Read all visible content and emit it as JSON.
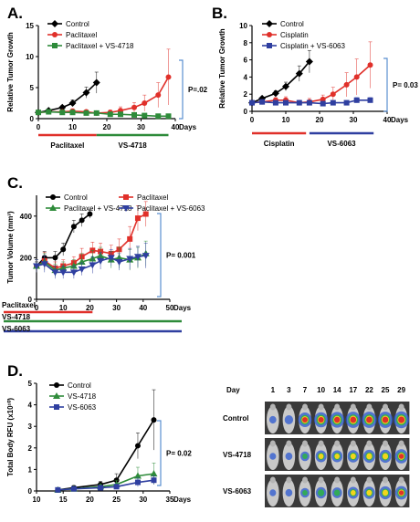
{
  "panels": {
    "A": {
      "label": "A."
    },
    "B": {
      "label": "B."
    },
    "C": {
      "label": "C."
    },
    "D": {
      "label": "D."
    }
  },
  "chart_data": [
    {
      "id": "A",
      "type": "line",
      "ylabel": "Relative Tumor Growth",
      "xlabel": "Days",
      "xlim": [
        0,
        40
      ],
      "ylim": [
        0,
        15
      ],
      "xticks": [
        0,
        10,
        20,
        30,
        40
      ],
      "yticks": [
        0,
        5,
        10,
        15
      ],
      "series": [
        {
          "name": "Control",
          "color": "#000000",
          "marker": "diamond",
          "x": [
            0,
            3,
            7,
            10,
            14,
            17
          ],
          "y": [
            1,
            1.3,
            1.8,
            2.5,
            4.2,
            5.8
          ],
          "err": [
            0,
            0.2,
            0.3,
            0.5,
            0.9,
            1.7
          ]
        },
        {
          "name": "Paclitaxel",
          "color": "#e0302a",
          "marker": "circle",
          "x": [
            0,
            3,
            7,
            10,
            14,
            17,
            21,
            24,
            28,
            31,
            35,
            38
          ],
          "y": [
            1,
            1.1,
            1.1,
            1.2,
            1.1,
            0.9,
            1.0,
            1.3,
            1.8,
            2.5,
            3.8,
            6.7
          ],
          "err": [
            0,
            0.3,
            0.3,
            0.4,
            0.3,
            0.3,
            0.4,
            0.6,
            0.8,
            1.3,
            2.0,
            4.5
          ]
        },
        {
          "name": "Paclitaxel + VS-4718",
          "color": "#2e8b3a",
          "marker": "square",
          "x": [
            0,
            3,
            7,
            10,
            14,
            17,
            21,
            24,
            28,
            31,
            35,
            38
          ],
          "y": [
            1,
            1.1,
            1.0,
            1.0,
            0.9,
            0.9,
            0.7,
            0.7,
            0.6,
            0.5,
            0.4,
            0.4
          ],
          "err": [
            0,
            0.2,
            0.2,
            0.2,
            0.2,
            0.2,
            0.2,
            0.2,
            0.2,
            0.2,
            0.2,
            0.2
          ]
        }
      ],
      "treatments": [
        {
          "label": "Paclitaxel",
          "color": "#e0302a",
          "from": 0,
          "to": 17
        },
        {
          "label": "VS-4718",
          "color": "#2e8b3a",
          "from": 17,
          "to": 38
        }
      ],
      "pvalue": "P=.02"
    },
    {
      "id": "B",
      "type": "line",
      "ylabel": "Relative Tumor Growth",
      "xlabel": "Days",
      "xlim": [
        0,
        40
      ],
      "ylim": [
        0,
        10
      ],
      "xticks": [
        0,
        10,
        20,
        30,
        40
      ],
      "yticks": [
        0,
        2,
        4,
        6,
        8,
        10
      ],
      "series": [
        {
          "name": "Control",
          "color": "#000000",
          "marker": "diamond",
          "x": [
            0,
            3,
            7,
            10,
            14,
            17
          ],
          "y": [
            1,
            1.5,
            2.1,
            2.9,
            4.4,
            5.8
          ],
          "err": [
            0,
            0.2,
            0.3,
            0.5,
            0.9,
            1.3
          ]
        },
        {
          "name": "Cisplatin",
          "color": "#e0302a",
          "marker": "circle",
          "x": [
            0,
            3,
            7,
            10,
            14,
            17,
            21,
            24,
            28,
            31,
            35
          ],
          "y": [
            1,
            1.1,
            1.3,
            1.3,
            1.0,
            1.1,
            1.4,
            2.0,
            3.1,
            4.0,
            5.4
          ],
          "err": [
            0,
            0.2,
            0.3,
            0.4,
            0.3,
            0.4,
            0.5,
            0.8,
            1.4,
            2.1,
            2.7
          ]
        },
        {
          "name": "Cisplatin + VS-6063",
          "color": "#2f3fa0",
          "marker": "square",
          "x": [
            0,
            3,
            7,
            10,
            14,
            17,
            21,
            24,
            28,
            31,
            35
          ],
          "y": [
            1,
            1.1,
            1.0,
            1.0,
            1.0,
            1.0,
            0.9,
            1.0,
            1.0,
            1.3,
            1.3
          ],
          "err": [
            0,
            0.2,
            0.2,
            0.2,
            0.2,
            0.2,
            0.2,
            0.2,
            0.2,
            0.3,
            0.3
          ]
        }
      ],
      "treatments": [
        {
          "label": "Cisplatin",
          "color": "#e0302a",
          "from": 0,
          "to": 16
        },
        {
          "label": "VS-6063",
          "color": "#2f3fa0",
          "from": 17,
          "to": 36
        }
      ],
      "pvalue": "P= 0.03"
    },
    {
      "id": "C",
      "type": "line",
      "ylabel": "Tumor Volume (mm³)",
      "xlabel": "Days",
      "xlim": [
        0,
        50
      ],
      "ylim": [
        0,
        500
      ],
      "xticks": [
        0,
        10,
        20,
        30,
        40,
        50
      ],
      "yticks": [
        0,
        200,
        400
      ],
      "series": [
        {
          "name": "Control",
          "color": "#000000",
          "marker": "circle",
          "x": [
            0,
            3,
            7,
            10,
            14,
            17,
            20
          ],
          "y": [
            160,
            200,
            200,
            240,
            350,
            380,
            410
          ],
          "err": [
            20,
            30,
            30,
            30,
            30,
            30,
            20
          ]
        },
        {
          "name": "Paclitaxel",
          "color": "#e0302a",
          "marker": "square",
          "x": [
            0,
            3,
            7,
            10,
            14,
            17,
            21,
            24,
            28,
            31,
            35,
            38,
            41
          ],
          "y": [
            160,
            185,
            150,
            160,
            175,
            205,
            235,
            230,
            220,
            240,
            290,
            390,
            410
          ],
          "err": [
            30,
            40,
            30,
            30,
            30,
            40,
            40,
            40,
            40,
            50,
            60,
            60,
            60
          ]
        },
        {
          "name": "Paclitaxel + VS-4718",
          "color": "#2e8b3a",
          "marker": "triangle",
          "x": [
            0,
            3,
            7,
            10,
            14,
            17,
            21,
            24,
            28,
            31,
            35,
            38,
            41
          ],
          "y": [
            160,
            180,
            140,
            150,
            160,
            180,
            195,
            210,
            190,
            200,
            190,
            200,
            220
          ],
          "err": [
            30,
            40,
            30,
            30,
            30,
            40,
            40,
            40,
            40,
            50,
            50,
            50,
            60
          ]
        },
        {
          "name": "Paclitaxel + VS-6063",
          "color": "#2f3fa0",
          "marker": "triangle-down",
          "x": [
            0,
            3,
            7,
            10,
            14,
            17,
            21,
            24,
            28,
            31,
            35,
            38,
            41
          ],
          "y": [
            160,
            170,
            130,
            130,
            130,
            145,
            165,
            185,
            200,
            180,
            195,
            205,
            210
          ],
          "err": [
            30,
            40,
            30,
            30,
            30,
            30,
            40,
            40,
            40,
            40,
            50,
            50,
            60
          ]
        }
      ],
      "treatments": [
        {
          "label": "Paclitaxel",
          "color": "#e0302a",
          "from": 0,
          "to": 21
        },
        {
          "label": "VS-4718",
          "color": "#2e8b3a",
          "from": 0,
          "to": 50
        },
        {
          "label": "VS-6063",
          "color": "#2f3fa0",
          "from": 0,
          "to": 50
        }
      ],
      "pvalue": "P= 0.001"
    },
    {
      "id": "D",
      "type": "line",
      "ylabel": "Total Body RFU (x10¹⁰)",
      "xlabel": "Days",
      "xlim": [
        10,
        35
      ],
      "ylim": [
        0,
        5
      ],
      "xticks": [
        10,
        15,
        20,
        25,
        30,
        35
      ],
      "yticks": [
        0,
        1,
        2,
        3,
        4,
        5
      ],
      "series": [
        {
          "name": "Control",
          "color": "#000000",
          "marker": "circle",
          "x": [
            14,
            17,
            22,
            25,
            29,
            32
          ],
          "y": [
            0.05,
            0.15,
            0.3,
            0.5,
            2.1,
            3.3
          ],
          "err": [
            0.05,
            0.1,
            0.15,
            0.3,
            0.6,
            1.4
          ]
        },
        {
          "name": "VS-4718",
          "color": "#2e8b3a",
          "marker": "triangle",
          "x": [
            14,
            17,
            22,
            25,
            29,
            32
          ],
          "y": [
            0.05,
            0.1,
            0.2,
            0.3,
            0.7,
            0.8
          ],
          "err": [
            0.05,
            0.1,
            0.1,
            0.2,
            0.4,
            0.5
          ]
        },
        {
          "name": "VS-6063",
          "color": "#2f3fa0",
          "marker": "square",
          "x": [
            14,
            17,
            22,
            25,
            29,
            32
          ],
          "y": [
            0.05,
            0.1,
            0.15,
            0.2,
            0.4,
            0.5
          ],
          "err": [
            0.05,
            0.05,
            0.1,
            0.1,
            0.2,
            0.2
          ]
        }
      ],
      "pvalue": "P= 0.02"
    }
  ],
  "imaging": {
    "day_label": "Day",
    "days": [
      "1",
      "3",
      "7",
      "10",
      "14",
      "17",
      "22",
      "25",
      "29"
    ],
    "rows": [
      {
        "label": "Control",
        "intensity": [
          0.1,
          0.25,
          0.75,
          0.8,
          0.85,
          0.9,
          0.9,
          0.9,
          0.95
        ]
      },
      {
        "label": "VS-4718",
        "intensity": [
          0.05,
          0.1,
          0.3,
          0.5,
          0.5,
          0.55,
          0.6,
          0.6,
          0.7
        ]
      },
      {
        "label": "VS-6063",
        "intensity": [
          0.05,
          0.1,
          0.3,
          0.45,
          0.4,
          0.5,
          0.55,
          0.6,
          0.65
        ]
      }
    ]
  }
}
